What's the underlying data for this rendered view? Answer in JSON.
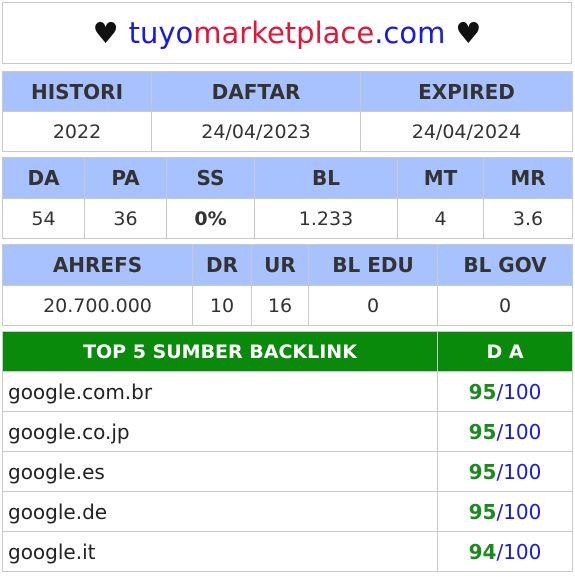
{
  "title": {
    "heart": "♥",
    "part1": "tuyo",
    "part2": "marketplace",
    "part3": ".com"
  },
  "table1": {
    "headers": [
      "HISTORI",
      "DAFTAR",
      "EXPIRED"
    ],
    "values": [
      "2022",
      "24/04/2023",
      "24/04/2024"
    ]
  },
  "table2": {
    "headers": [
      "DA",
      "PA",
      "SS",
      "BL",
      "MT",
      "MR"
    ],
    "values": [
      "54",
      "36",
      "0%",
      "1.233",
      "4",
      "3.6"
    ]
  },
  "table3": {
    "headers": [
      "AHREFS",
      "DR",
      "UR",
      "BL EDU",
      "BL GOV"
    ],
    "values": [
      "20.700.000",
      "10",
      "16",
      "0",
      "0"
    ]
  },
  "backlinks": {
    "header": "TOP 5 SUMBER BACKLINK",
    "da_header": "D A",
    "max": "100",
    "slash": "/",
    "rows": [
      {
        "site": "google.com.br",
        "score": "95"
      },
      {
        "site": "google.co.jp",
        "score": "95"
      },
      {
        "site": "google.es",
        "score": "95"
      },
      {
        "site": "google.de",
        "score": "95"
      },
      {
        "site": "google.it",
        "score": "94"
      }
    ]
  },
  "colors": {
    "header_bg": "#a8c2ff",
    "backlink_header_bg": "#0a8a0a",
    "brand_blue": "#1a1adc",
    "brand_red": "#e3163a",
    "ss_green": "#7fd14a",
    "score_green": "#1d8a1d"
  }
}
